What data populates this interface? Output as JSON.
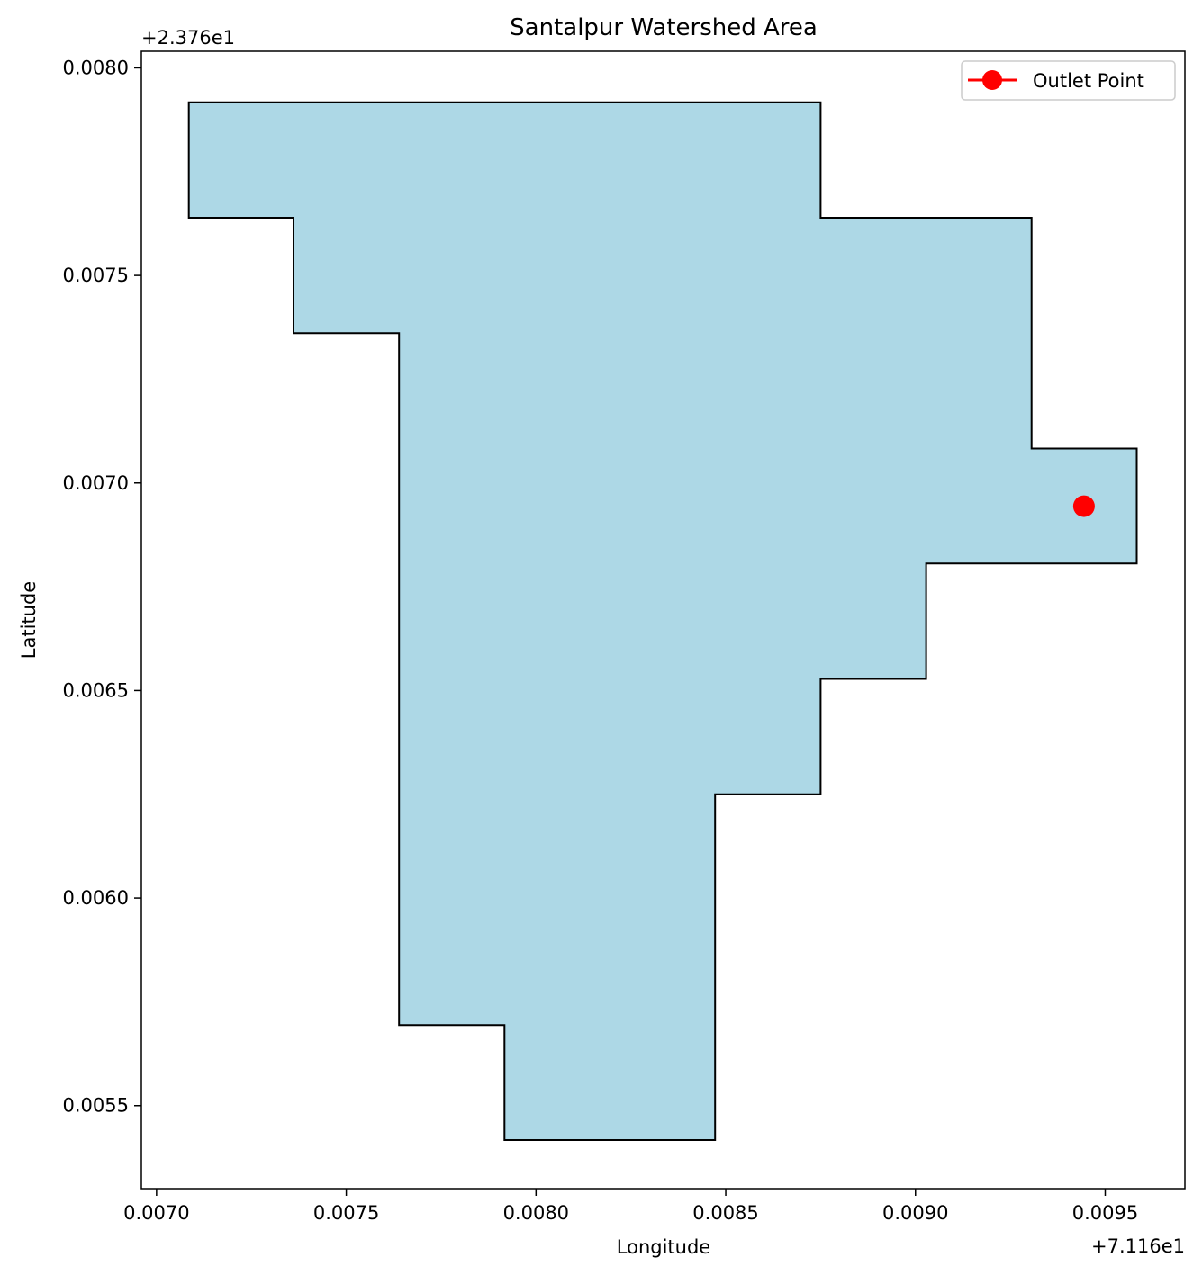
{
  "chart_data": {
    "type": "area",
    "title": "Santalpur Watershed Area",
    "xlabel": "Longitude",
    "ylabel": "Latitude",
    "x_offset_label": "+7.116e1",
    "y_offset_label": "+2.376e1",
    "xlim": [
      0.00696,
      0.00971
    ],
    "ylim": [
      0.0053,
      0.00804
    ],
    "x_ticks": [
      0.007,
      0.0075,
      0.008,
      0.0085,
      0.009,
      0.0095
    ],
    "x_tick_labels": [
      "0.0070",
      "0.0075",
      "0.0080",
      "0.0085",
      "0.0090",
      "0.0095"
    ],
    "y_ticks": [
      0.0055,
      0.006,
      0.0065,
      0.007,
      0.0075,
      0.008
    ],
    "y_tick_labels": [
      "0.0055",
      "0.0060",
      "0.0065",
      "0.0070",
      "0.0075",
      "0.0080"
    ],
    "grid": false,
    "legend_position": "top-right",
    "polygon": {
      "fill": "#add8e6",
      "stroke": "#000000",
      "vertices": [
        [
          0.007085,
          0.007917
        ],
        [
          0.00875,
          0.007917
        ],
        [
          0.00875,
          0.007639
        ],
        [
          0.009306,
          0.007639
        ],
        [
          0.009306,
          0.007083
        ],
        [
          0.009583,
          0.007083
        ],
        [
          0.009583,
          0.006806
        ],
        [
          0.009028,
          0.006806
        ],
        [
          0.009028,
          0.006528
        ],
        [
          0.00875,
          0.006528
        ],
        [
          0.00875,
          0.00625
        ],
        [
          0.008472,
          0.00625
        ],
        [
          0.008472,
          0.005417
        ],
        [
          0.007917,
          0.005417
        ],
        [
          0.007917,
          0.005694
        ],
        [
          0.007639,
          0.005694
        ],
        [
          0.007639,
          0.007361
        ],
        [
          0.007361,
          0.007361
        ],
        [
          0.007361,
          0.007639
        ],
        [
          0.007085,
          0.007639
        ]
      ]
    },
    "series": [
      {
        "name": "Outlet Point",
        "color": "#ff0000",
        "marker": "circle",
        "x": [
          0.009444
        ],
        "y": [
          0.006944
        ]
      }
    ]
  }
}
